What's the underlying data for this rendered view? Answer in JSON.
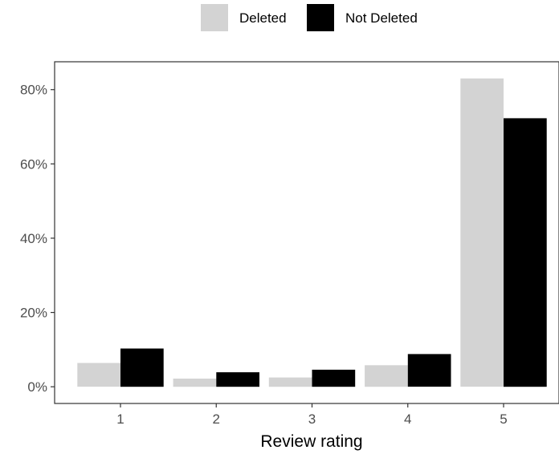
{
  "chart_data": {
    "type": "bar",
    "title": "",
    "xlabel": "Review rating",
    "ylabel": "",
    "categories": [
      "1",
      "2",
      "3",
      "4",
      "5"
    ],
    "series": [
      {
        "name": "Deleted",
        "color": "#d3d3d3",
        "values": [
          6.4,
          2.2,
          2.5,
          5.8,
          83.0
        ]
      },
      {
        "name": "Not Deleted",
        "color": "#000000",
        "values": [
          10.3,
          3.9,
          4.6,
          8.8,
          72.3
        ]
      }
    ],
    "y_ticks": [
      0,
      20,
      40,
      60,
      80
    ],
    "y_tick_labels": [
      "0%",
      "20%",
      "40%",
      "60%",
      "80%"
    ],
    "ylim": [
      -4.5,
      87.5
    ],
    "legend_position": "top",
    "grid": false
  }
}
